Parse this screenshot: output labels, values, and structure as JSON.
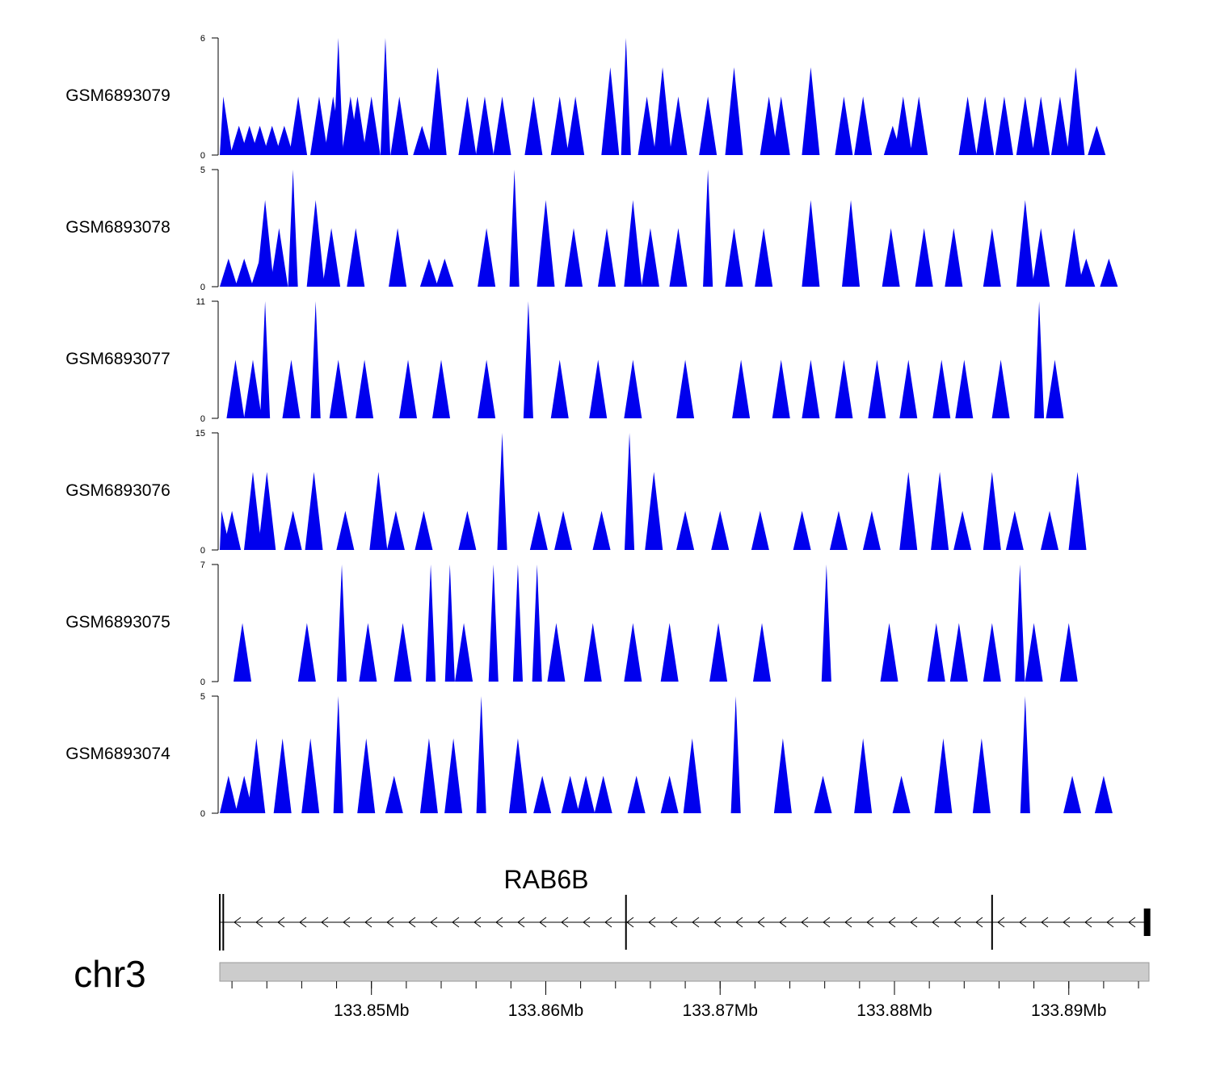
{
  "colors": {
    "signal": "#0000ee",
    "axis": "#000000",
    "ideogram": "#cccccc",
    "ideogram_border": "#999999"
  },
  "chart_data": {
    "type": "area",
    "region": {
      "chromosome": "chr3",
      "start_mb": 133.8413,
      "end_mb": 133.8946
    },
    "tracks": [
      {
        "name": "GSM6893079",
        "ymax": 6,
        "ymin": 0,
        "peaks": [
          [
            133.8415,
            3
          ],
          [
            133.8424,
            1.5
          ],
          [
            133.843,
            1.5
          ],
          [
            133.8436,
            1.5
          ],
          [
            133.8443,
            1.5
          ],
          [
            133.845,
            1.5
          ],
          [
            133.8458,
            3
          ],
          [
            133.847,
            3
          ],
          [
            133.8478,
            3
          ],
          [
            133.8481,
            6
          ],
          [
            133.8488,
            3
          ],
          [
            133.8492,
            3
          ],
          [
            133.85,
            3
          ],
          [
            133.8508,
            6
          ],
          [
            133.8516,
            3
          ],
          [
            133.8529,
            1.5
          ],
          [
            133.8538,
            4.5
          ],
          [
            133.8555,
            3
          ],
          [
            133.8565,
            3
          ],
          [
            133.8575,
            3
          ],
          [
            133.8593,
            3
          ],
          [
            133.8608,
            3
          ],
          [
            133.8617,
            3
          ],
          [
            133.8637,
            4.5
          ],
          [
            133.8646,
            6
          ],
          [
            133.8658,
            3
          ],
          [
            133.8667,
            4.5
          ],
          [
            133.8676,
            3
          ],
          [
            133.8693,
            3
          ],
          [
            133.8708,
            4.5
          ],
          [
            133.8728,
            3
          ],
          [
            133.8735,
            3
          ],
          [
            133.8752,
            4.5
          ],
          [
            133.8771,
            3
          ],
          [
            133.8782,
            3
          ],
          [
            133.8799,
            1.5
          ],
          [
            133.8805,
            3
          ],
          [
            133.8814,
            3
          ],
          [
            133.8842,
            3
          ],
          [
            133.8852,
            3
          ],
          [
            133.8863,
            3
          ],
          [
            133.8875,
            3
          ],
          [
            133.8884,
            3
          ],
          [
            133.8895,
            3
          ],
          [
            133.8904,
            4.5
          ],
          [
            133.8916,
            1.5
          ]
        ]
      },
      {
        "name": "GSM6893078",
        "ymax": 5,
        "ymin": 0,
        "peaks": [
          [
            133.8418,
            1.2
          ],
          [
            133.8427,
            1.2
          ],
          [
            133.8436,
            1.2
          ],
          [
            133.8439,
            3.7
          ],
          [
            133.8447,
            2.5
          ],
          [
            133.8455,
            5
          ],
          [
            133.8468,
            3.7
          ],
          [
            133.8477,
            2.5
          ],
          [
            133.8491,
            2.5
          ],
          [
            133.8515,
            2.5
          ],
          [
            133.8533,
            1.2
          ],
          [
            133.8542,
            1.2
          ],
          [
            133.8566,
            2.5
          ],
          [
            133.8582,
            5
          ],
          [
            133.86,
            3.7
          ],
          [
            133.8616,
            2.5
          ],
          [
            133.8635,
            2.5
          ],
          [
            133.865,
            3.7
          ],
          [
            133.866,
            2.5
          ],
          [
            133.8676,
            2.5
          ],
          [
            133.8693,
            5
          ],
          [
            133.8708,
            2.5
          ],
          [
            133.8725,
            2.5
          ],
          [
            133.8752,
            3.7
          ],
          [
            133.8775,
            3.7
          ],
          [
            133.8798,
            2.5
          ],
          [
            133.8817,
            2.5
          ],
          [
            133.8834,
            2.5
          ],
          [
            133.8856,
            2.5
          ],
          [
            133.8875,
            3.7
          ],
          [
            133.8884,
            2.5
          ],
          [
            133.8903,
            2.5
          ],
          [
            133.891,
            1.2
          ],
          [
            133.8923,
            1.2
          ]
        ]
      },
      {
        "name": "GSM6893077",
        "ymax": 11,
        "ymin": 0,
        "peaks": [
          [
            133.8422,
            5.5
          ],
          [
            133.8432,
            5.5
          ],
          [
            133.8439,
            11
          ],
          [
            133.8454,
            5.5
          ],
          [
            133.8468,
            11
          ],
          [
            133.8481,
            5.5
          ],
          [
            133.8496,
            5.5
          ],
          [
            133.8521,
            5.5
          ],
          [
            133.854,
            5.5
          ],
          [
            133.8566,
            5.5
          ],
          [
            133.859,
            11
          ],
          [
            133.8608,
            5.5
          ],
          [
            133.863,
            5.5
          ],
          [
            133.865,
            5.5
          ],
          [
            133.868,
            5.5
          ],
          [
            133.8712,
            5.5
          ],
          [
            133.8735,
            5.5
          ],
          [
            133.8752,
            5.5
          ],
          [
            133.8771,
            5.5
          ],
          [
            133.879,
            5.5
          ],
          [
            133.8808,
            5.5
          ],
          [
            133.8827,
            5.5
          ],
          [
            133.884,
            5.5
          ],
          [
            133.8861,
            5.5
          ],
          [
            133.8883,
            11
          ],
          [
            133.8892,
            5.5
          ]
        ]
      },
      {
        "name": "GSM6893076",
        "ymax": 15,
        "ymin": 0,
        "peaks": [
          [
            133.8414,
            5
          ],
          [
            133.842,
            5
          ],
          [
            133.8432,
            10
          ],
          [
            133.844,
            10
          ],
          [
            133.8455,
            5
          ],
          [
            133.8467,
            10
          ],
          [
            133.8485,
            5
          ],
          [
            133.8504,
            10
          ],
          [
            133.8514,
            5
          ],
          [
            133.853,
            5
          ],
          [
            133.8555,
            5
          ],
          [
            133.8575,
            15
          ],
          [
            133.8596,
            5
          ],
          [
            133.861,
            5
          ],
          [
            133.8632,
            5
          ],
          [
            133.8648,
            15
          ],
          [
            133.8662,
            10
          ],
          [
            133.868,
            5
          ],
          [
            133.87,
            5
          ],
          [
            133.8723,
            5
          ],
          [
            133.8747,
            5
          ],
          [
            133.8768,
            5
          ],
          [
            133.8787,
            5
          ],
          [
            133.8808,
            10
          ],
          [
            133.8826,
            10
          ],
          [
            133.8839,
            5
          ],
          [
            133.8856,
            10
          ],
          [
            133.8869,
            5
          ],
          [
            133.8889,
            5
          ],
          [
            133.8905,
            10
          ]
        ]
      },
      {
        "name": "GSM6893075",
        "ymax": 7,
        "ymin": 0,
        "peaks": [
          [
            133.8426,
            3.5
          ],
          [
            133.8463,
            3.5
          ],
          [
            133.8483,
            7
          ],
          [
            133.8498,
            3.5
          ],
          [
            133.8518,
            3.5
          ],
          [
            133.8534,
            7
          ],
          [
            133.8545,
            7
          ],
          [
            133.8553,
            3.5
          ],
          [
            133.857,
            7
          ],
          [
            133.8584,
            7
          ],
          [
            133.8595,
            7
          ],
          [
            133.8606,
            3.5
          ],
          [
            133.8627,
            3.5
          ],
          [
            133.865,
            3.5
          ],
          [
            133.8671,
            3.5
          ],
          [
            133.8699,
            3.5
          ],
          [
            133.8724,
            3.5
          ],
          [
            133.8761,
            7
          ],
          [
            133.8797,
            3.5
          ],
          [
            133.8824,
            3.5
          ],
          [
            133.8837,
            3.5
          ],
          [
            133.8856,
            3.5
          ],
          [
            133.8872,
            7
          ],
          [
            133.888,
            3.5
          ],
          [
            133.89,
            3.5
          ]
        ]
      },
      {
        "name": "GSM6893074",
        "ymax": 5,
        "ymin": 0,
        "peaks": [
          [
            133.8418,
            1.6
          ],
          [
            133.8427,
            1.6
          ],
          [
            133.8434,
            3.2
          ],
          [
            133.8449,
            3.2
          ],
          [
            133.8465,
            3.2
          ],
          [
            133.8481,
            5
          ],
          [
            133.8497,
            3.2
          ],
          [
            133.8513,
            1.6
          ],
          [
            133.8533,
            3.2
          ],
          [
            133.8547,
            3.2
          ],
          [
            133.8563,
            5
          ],
          [
            133.8584,
            3.2
          ],
          [
            133.8598,
            1.6
          ],
          [
            133.8614,
            1.6
          ],
          [
            133.8623,
            1.6
          ],
          [
            133.8633,
            1.6
          ],
          [
            133.8652,
            1.6
          ],
          [
            133.8671,
            1.6
          ],
          [
            133.8684,
            3.2
          ],
          [
            133.8709,
            5
          ],
          [
            133.8736,
            3.2
          ],
          [
            133.8759,
            1.6
          ],
          [
            133.8782,
            3.2
          ],
          [
            133.8804,
            1.6
          ],
          [
            133.8828,
            3.2
          ],
          [
            133.885,
            3.2
          ],
          [
            133.8875,
            5
          ],
          [
            133.8902,
            1.6
          ],
          [
            133.892,
            1.6
          ]
        ]
      }
    ],
    "gene": {
      "name": "RAB6B",
      "strand": "-",
      "start_mb": 133.8413,
      "end_mb": 133.8946,
      "exons_mb": [
        133.8413,
        133.8415,
        133.8646,
        133.8856,
        133.8944
      ]
    },
    "axis": {
      "ticks_mb": [
        133.85,
        133.86,
        133.87,
        133.88,
        133.89
      ],
      "tick_labels": [
        "133.85Mb",
        "133.86Mb",
        "133.87Mb",
        "133.88Mb",
        "133.89Mb"
      ],
      "minor_step_mb": 0.002
    }
  }
}
